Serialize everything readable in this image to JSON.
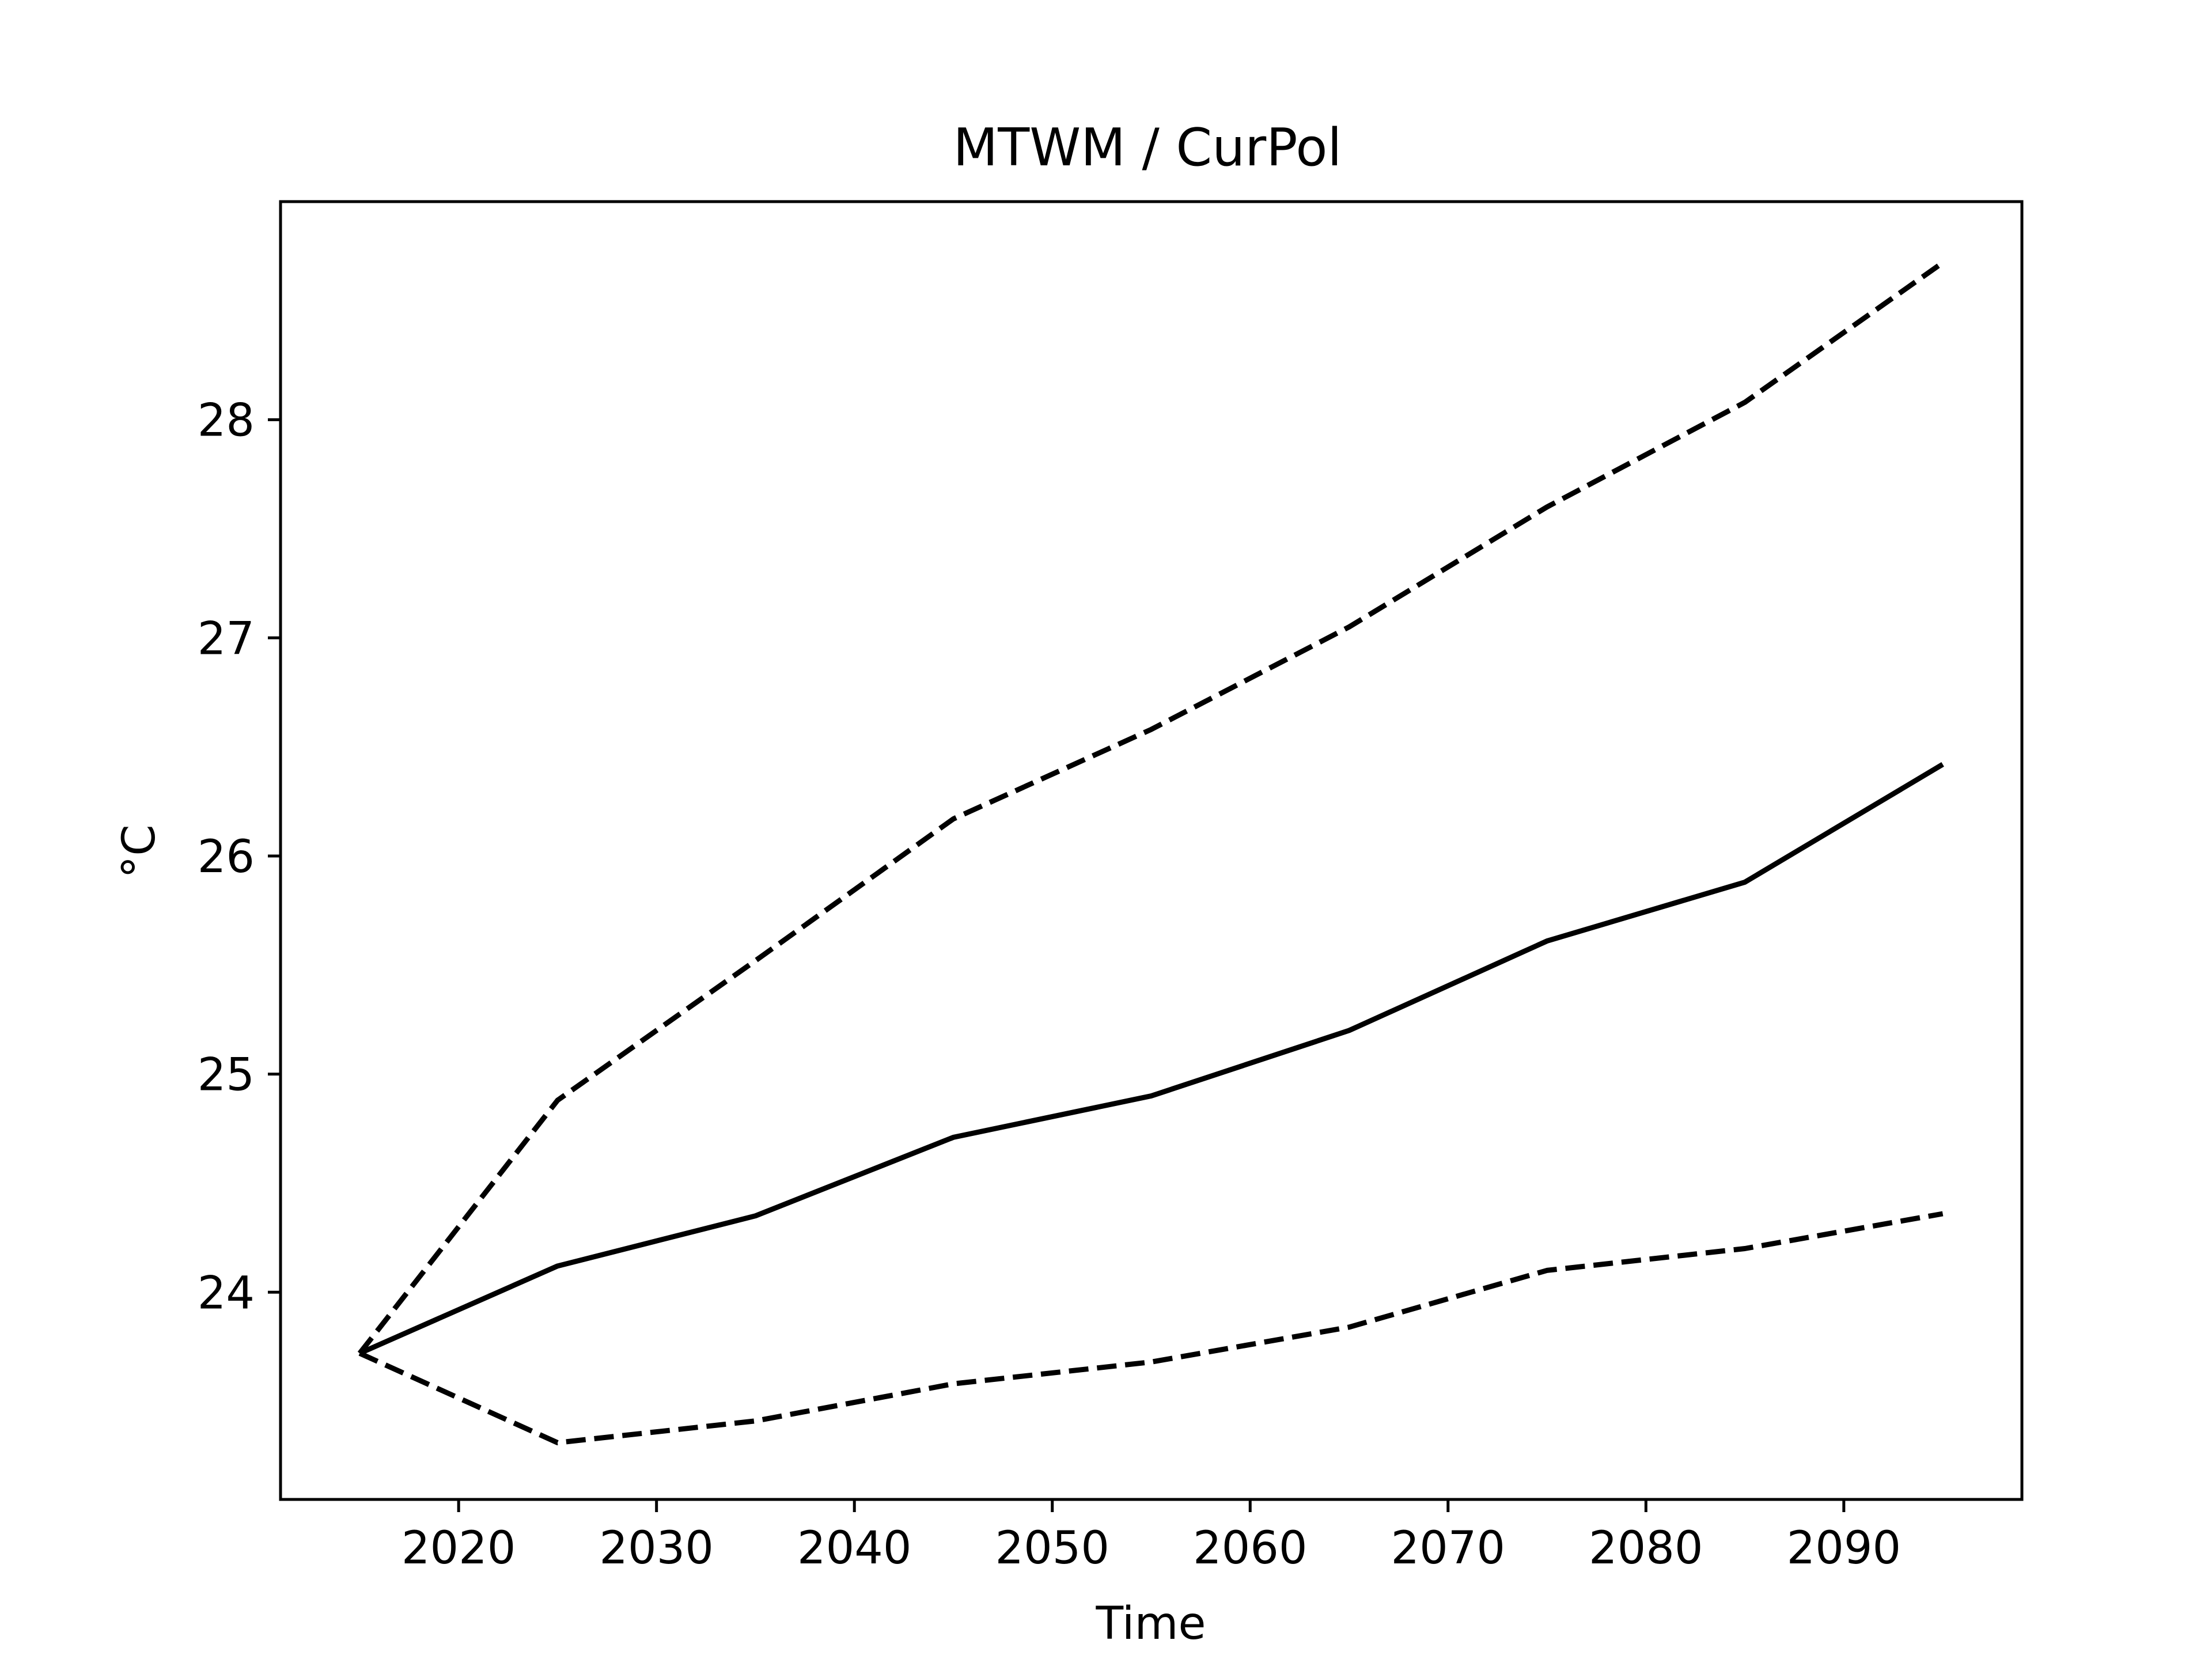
{
  "chart_data": {
    "type": "line",
    "title": "MTWM / CurPol",
    "xlabel": "Time",
    "ylabel": "°C",
    "x": [
      2015,
      2025,
      2035,
      2045,
      2055,
      2065,
      2075,
      2085,
      2095
    ],
    "xlim": [
      2011,
      2099
    ],
    "ylim": [
      23.05,
      29.0
    ],
    "xticks": [
      2020,
      2030,
      2040,
      2050,
      2060,
      2070,
      2080,
      2090
    ],
    "yticks": [
      24,
      25,
      26,
      27,
      28
    ],
    "grid": false,
    "legend": "none",
    "line_color": "#000000",
    "series": [
      {
        "style": "solid",
        "values": [
          23.72,
          24.12,
          24.35,
          24.71,
          24.9,
          25.2,
          25.61,
          25.88,
          26.42
        ]
      },
      {
        "style": "dashed",
        "values": [
          23.72,
          24.88,
          25.52,
          26.17,
          26.58,
          27.05,
          27.6,
          28.08,
          28.72
        ]
      },
      {
        "style": "dashed",
        "values": [
          23.72,
          23.31,
          23.41,
          23.58,
          23.68,
          23.84,
          24.1,
          24.2,
          24.36
        ]
      }
    ]
  }
}
